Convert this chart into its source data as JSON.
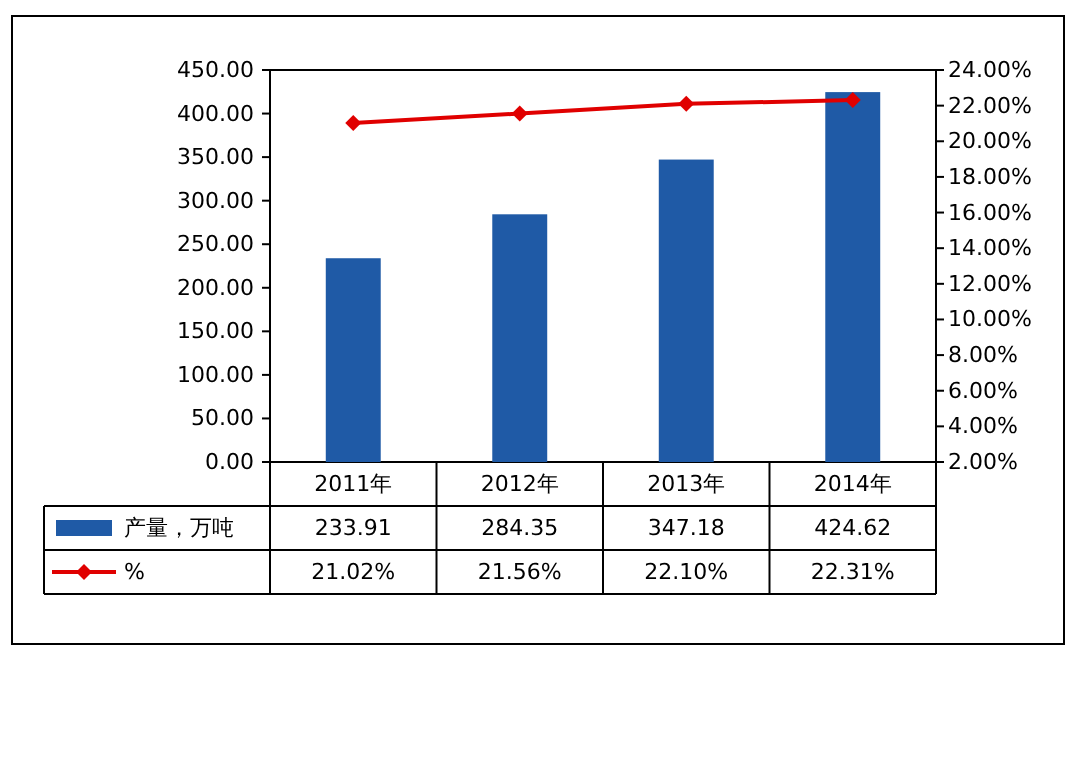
{
  "chart_data": {
    "type": "bar",
    "categories": [
      "2011年",
      "2012年",
      "2013年",
      "2014年"
    ],
    "series": [
      {
        "name": "产量，万吨",
        "color": "#1f5aa6",
        "values": [
          233.91,
          284.35,
          347.18,
          424.62
        ],
        "value_labels": [
          "233.91",
          "284.35",
          "347.18",
          "424.62"
        ]
      },
      {
        "name": "%",
        "type": "line",
        "axis": "y2",
        "color": "#e00000",
        "values": [
          21.02,
          21.56,
          22.1,
          22.31
        ],
        "value_labels": [
          "21.02%",
          "21.56%",
          "22.10%",
          "22.31%"
        ]
      }
    ],
    "ylim": [
      0,
      450
    ],
    "yticks": [
      {
        "value": 0,
        "label": "0.00"
      },
      {
        "value": 50,
        "label": "50.00"
      },
      {
        "value": 100,
        "label": "100.00"
      },
      {
        "value": 150,
        "label": "150.00"
      },
      {
        "value": 200,
        "label": "200.00"
      },
      {
        "value": 250,
        "label": "250.00"
      },
      {
        "value": 300,
        "label": "300.00"
      },
      {
        "value": 350,
        "label": "350.00"
      },
      {
        "value": 400,
        "label": "400.00"
      },
      {
        "value": 450,
        "label": "450.00"
      }
    ],
    "y2lim": [
      2,
      24
    ],
    "y2ticks": [
      {
        "value": 2,
        "label": "2.00%"
      },
      {
        "value": 4,
        "label": "4.00%"
      },
      {
        "value": 6,
        "label": "6.00%"
      },
      {
        "value": 8,
        "label": "8.00%"
      },
      {
        "value": 10,
        "label": "10.00%"
      },
      {
        "value": 12,
        "label": "12.00%"
      },
      {
        "value": 14,
        "label": "14.00%"
      },
      {
        "value": 16,
        "label": "16.00%"
      },
      {
        "value": 18,
        "label": "18.00%"
      },
      {
        "value": 20,
        "label": "20.00%"
      },
      {
        "value": 22,
        "label": "22.00%"
      },
      {
        "value": 24,
        "label": "24.00%"
      }
    ],
    "legend": "bottom",
    "marker": "diamond",
    "grid": false
  }
}
